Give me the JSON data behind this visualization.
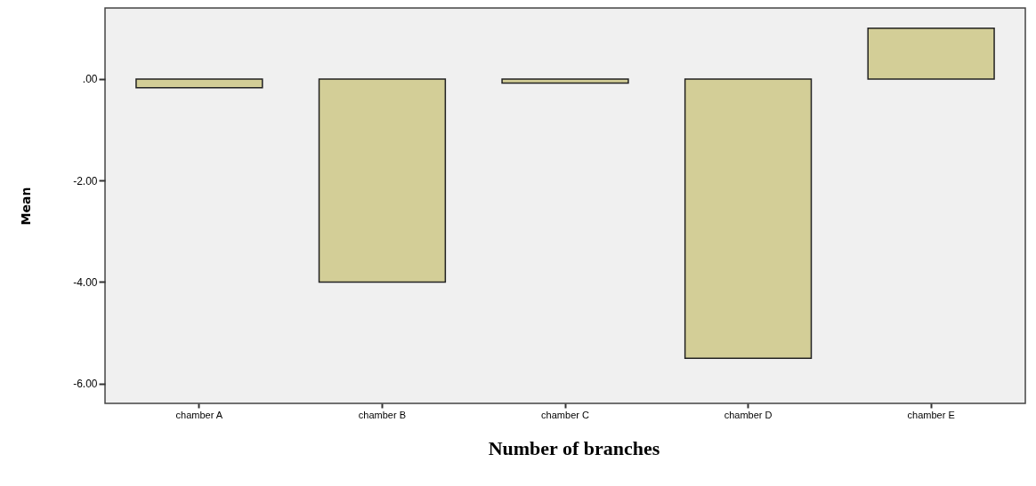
{
  "chart_data": {
    "type": "bar",
    "xlabel": "Number of branches",
    "ylabel": "Mean",
    "categories": [
      "chamber A",
      "chamber B",
      "chamber C",
      "chamber D",
      "chamber E"
    ],
    "values": [
      -0.17,
      -4.0,
      -0.08,
      -5.5,
      1.0
    ],
    "color": "#d3ce97",
    "ylim": [
      -6.39,
      1.4
    ],
    "yticks": [
      {
        "value": -6,
        "label": "-6.00"
      },
      {
        "value": -4,
        "label": "-4.00"
      },
      {
        "value": -2,
        "label": "-2.00"
      },
      {
        "value": 0,
        "label": ".00"
      }
    ],
    "grid": false
  }
}
